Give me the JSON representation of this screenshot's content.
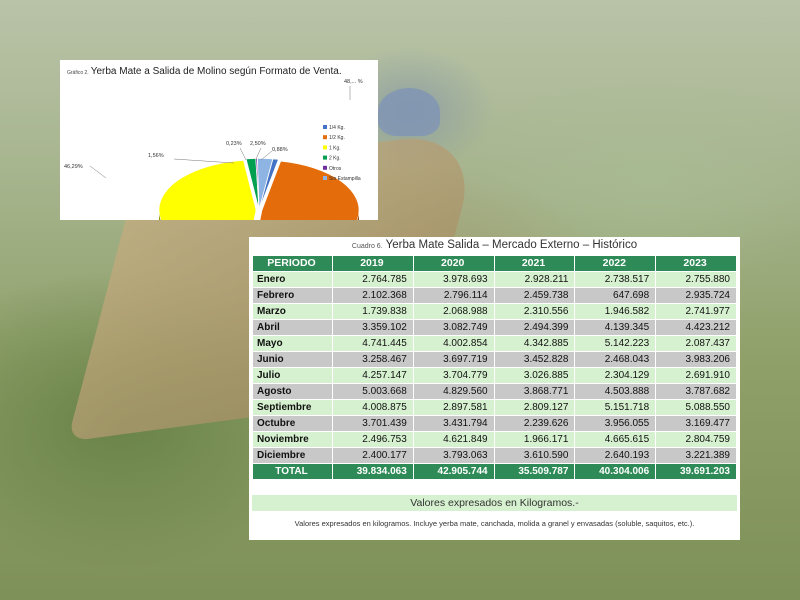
{
  "pie_chart": {
    "prefix": "Gráfico 2.",
    "title": "Yerba Mate a Salida de Molino según Formato de Venta.",
    "colors": {
      "cuarto_kg": "#4472c4",
      "medio_kg": "#e46c0a",
      "un_kg": "#ffff00",
      "dos_kg": "#00a050",
      "otros": "#7030a0",
      "sin_estampilla": "#8db4e2"
    },
    "legend": [
      "1/4 Kg.",
      "1/2 Kg.",
      "1 Kg.",
      "2 Kg.",
      "Otros",
      "Sin Estampilla"
    ],
    "percent_labels": [
      "1,56%",
      "0,23%",
      "2,50%",
      "0,88%",
      "46,29%",
      "48,... %"
    ]
  },
  "chart_data": {
    "type": "pie",
    "title": "Yerba Mate a Salida de Molino según Formato de Venta.",
    "categories": [
      "1/4 Kg.",
      "1/2 Kg.",
      "1 Kg.",
      "2 Kg.",
      "Otros",
      "Sin Estampilla"
    ],
    "values": [
      0.88,
      48.54,
      46.29,
      1.56,
      0.23,
      2.5
    ],
    "legend_position": "right"
  },
  "table": {
    "caption_prefix": "Cuadro 6.",
    "caption": "Yerba Mate Salida  – Mercado Externo – Histórico",
    "headers": [
      "PERIODO",
      "2019",
      "2020",
      "2021",
      "2022",
      "2023"
    ],
    "rows": [
      [
        "Enero",
        "2.764.785",
        "3.978.693",
        "2.928.211",
        "2.738.517",
        "2.755.880"
      ],
      [
        "Febrero",
        "2.102.368",
        "2.796.114",
        "2.459.738",
        "647.698",
        "2.935.724"
      ],
      [
        "Marzo",
        "1.739.838",
        "2.068.988",
        "2.310.556",
        "1.946.582",
        "2.741.977"
      ],
      [
        "Abril",
        "3.359.102",
        "3.082.749",
        "2.494.399",
        "4.139.345",
        "4.423.212"
      ],
      [
        "Mayo",
        "4.741.445",
        "4.002.854",
        "4.342.885",
        "5.142.223",
        "2.087.437"
      ],
      [
        "Junio",
        "3.258.467",
        "3.697.719",
        "3.452.828",
        "2.468.043",
        "3.983.206"
      ],
      [
        "Julio",
        "4.257.147",
        "3.704.779",
        "3.026.885",
        "2.304.129",
        "2.691.910"
      ],
      [
        "Agosto",
        "5.003.668",
        "4.829.560",
        "3.868.771",
        "4.503.888",
        "3.787.682"
      ],
      [
        "Septiembre",
        "4.008.875",
        "2.897.581",
        "2.809.127",
        "5.151.718",
        "5.088.550"
      ],
      [
        "Octubre",
        "3.701.439",
        "3.431.794",
        "2.239.626",
        "3.956.055",
        "3.169.477"
      ],
      [
        "Noviembre",
        "2.496.753",
        "4.621.849",
        "1.966.171",
        "4.665.615",
        "2.804.759"
      ],
      [
        "Diciembre",
        "2.400.177",
        "3.793.063",
        "3.610.590",
        "2.640.193",
        "3.221.389"
      ]
    ],
    "total": [
      "TOTAL",
      "39.834.063",
      "42.905.744",
      "35.509.787",
      "40.304.006",
      "39.691.203"
    ],
    "units_note": "Valores expresados en Kilogramos.-",
    "footnote": "Valores expresados en kilogramos. Incluye yerba mate, canchada, molida a granel y envasadas (soluble, saquitos, etc.).",
    "header_color": "#2e8b57",
    "row_color_light": "#d6f1cf",
    "row_color_gray": "#c8c8c8"
  }
}
